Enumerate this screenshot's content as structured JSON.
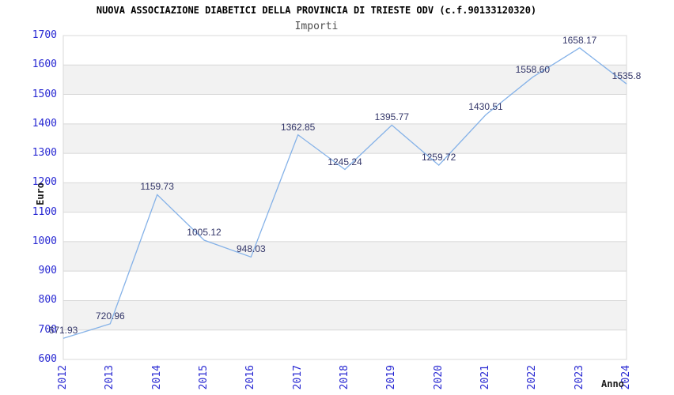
{
  "chart_data": {
    "type": "line",
    "title": "NUOVA ASSOCIAZIONE DIABETICI DELLA PROVINCIA DI TRIESTE ODV (c.f.90133120320)",
    "subtitle": "Importi",
    "xlabel": "Anno",
    "ylabel": "Euro",
    "categories": [
      "2012",
      "2013",
      "2014",
      "2015",
      "2016",
      "2017",
      "2018",
      "2019",
      "2020",
      "2021",
      "2022",
      "2023",
      "2024"
    ],
    "values": [
      671.93,
      720.96,
      1159.73,
      1005.12,
      948.03,
      1362.85,
      1245.24,
      1395.77,
      1259.72,
      1430.51,
      1558.6,
      1658.17,
      1535.8
    ],
    "value_labels": [
      "671.93",
      "720.96",
      "1159.73",
      "1005.12",
      "948.03",
      "1362.85",
      "1245.24",
      "1395.77",
      "1259.72",
      "1430.51",
      "1558.60",
      "1658.17",
      "1535.8"
    ],
    "ylim": [
      600,
      1700
    ],
    "yticks": [
      600,
      700,
      800,
      900,
      1000,
      1100,
      1200,
      1300,
      1400,
      1500,
      1600,
      1700
    ],
    "grid": true,
    "banded_background": true,
    "legend": "none",
    "x_tick_rotation_deg": 90,
    "colors": {
      "line": "#85b2e8",
      "tick_label": "#2727d2",
      "data_label": "#333669",
      "band": "#f2f2f2",
      "grid": "#d8d8d8",
      "title": "#000000",
      "subtitle": "#4d4d4d",
      "axis_title": "#1a1a1a",
      "background": "#ffffff"
    }
  }
}
